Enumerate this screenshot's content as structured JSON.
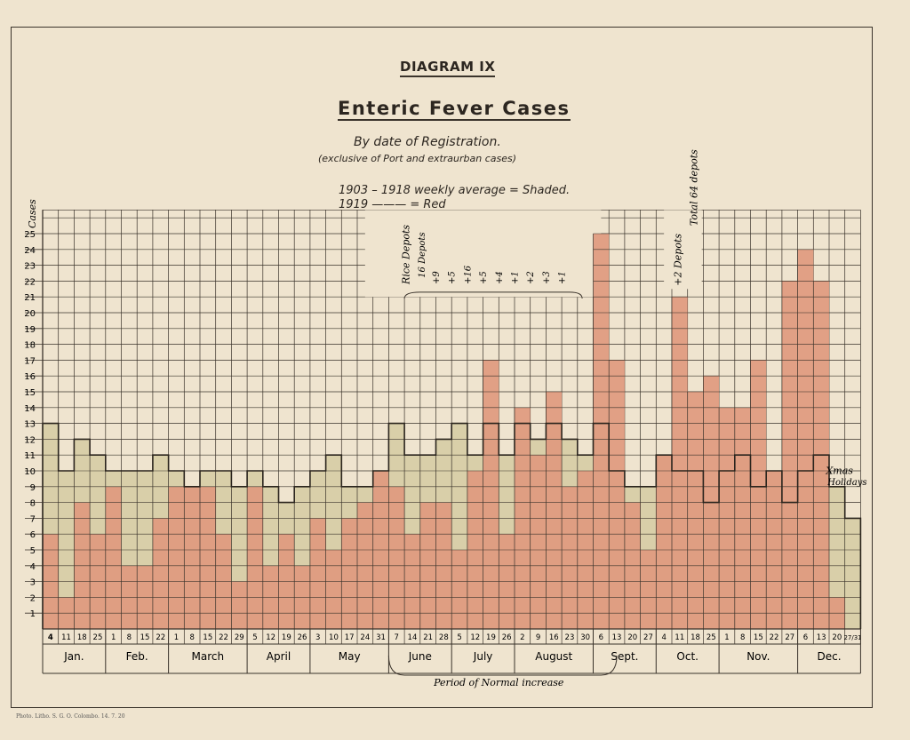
{
  "header": {
    "diagram": "DIAGRAM IX",
    "title": "Enteric Fever Cases",
    "caption_line1": "By date of Registration.",
    "caption_line2": "(exclusive of Port and extraurban cases)",
    "legend_line1": "1903 – 1918  weekly average = Shaded.",
    "legend_line2": "1919        ———      = Red"
  },
  "footer": "Photo. Litho. S. G. O. Colombo. 14. 7. 20",
  "colors": {
    "paper": "#efe4cf",
    "shaded": "#d9cfa9",
    "red": "#e09a7f",
    "grid": "#3a332b"
  },
  "chart_data": {
    "type": "bar",
    "ylabel": "Cases",
    "ylim": [
      0,
      25
    ],
    "y_ticks": [
      1,
      2,
      3,
      4,
      5,
      6,
      7,
      8,
      9,
      10,
      11,
      12,
      13,
      14,
      15,
      16,
      17,
      18,
      19,
      20,
      21,
      22,
      23,
      24,
      25
    ],
    "categories": [
      "4",
      "11",
      "18",
      "25",
      "1",
      "8",
      "15",
      "22",
      "1",
      "8",
      "15",
      "22",
      "29",
      "5",
      "12",
      "19",
      "26",
      "3",
      "10",
      "17",
      "24",
      "31",
      "7",
      "14",
      "21",
      "28",
      "5",
      "12",
      "19",
      "26",
      "2",
      "9",
      "16",
      "23",
      "30",
      "6",
      "13",
      "20",
      "27",
      "4",
      "11",
      "18",
      "25",
      "1",
      "8",
      "15",
      "22",
      "27",
      "6",
      "13",
      "20",
      "27/31"
    ],
    "months": [
      {
        "label": "Jan.",
        "start": 0,
        "end": 4
      },
      {
        "label": "Feb.",
        "start": 4,
        "end": 8
      },
      {
        "label": "March",
        "start": 8,
        "end": 13
      },
      {
        "label": "April",
        "start": 13,
        "end": 17
      },
      {
        "label": "May",
        "start": 17,
        "end": 22
      },
      {
        "label": "June",
        "start": 22,
        "end": 26
      },
      {
        "label": "July",
        "start": 26,
        "end": 30
      },
      {
        "label": "August",
        "start": 30,
        "end": 35
      },
      {
        "label": "Sept.",
        "start": 35,
        "end": 39
      },
      {
        "label": "Oct.",
        "start": 39,
        "end": 43
      },
      {
        "label": "Nov.",
        "start": 43,
        "end": 48
      },
      {
        "label": "Dec.",
        "start": 48,
        "end": 52
      }
    ],
    "series": [
      {
        "name": "1903 – 1918 weekly average",
        "style": "shaded",
        "values": [
          13,
          10,
          12,
          11,
          10,
          10,
          10,
          11,
          10,
          9,
          10,
          10,
          9,
          10,
          9,
          8,
          9,
          10,
          11,
          9,
          9,
          10,
          13,
          11,
          11,
          12,
          13,
          11,
          13,
          11,
          13,
          12,
          13,
          12,
          11,
          13,
          10,
          9,
          9,
          11,
          10,
          10,
          8,
          10,
          11,
          9,
          10,
          8,
          10,
          11,
          9,
          7
        ]
      },
      {
        "name": "1919",
        "style": "red",
        "values": [
          6,
          2,
          8,
          6,
          9,
          4,
          4,
          7,
          9,
          9,
          9,
          6,
          3,
          9,
          4,
          6,
          4,
          7,
          5,
          7,
          8,
          10,
          9,
          6,
          8,
          8,
          5,
          10,
          17,
          6,
          14,
          11,
          15,
          9,
          10,
          25,
          17,
          8,
          5,
          11,
          21,
          15,
          16,
          14,
          14,
          17,
          10,
          22,
          24,
          22,
          2,
          0
        ]
      }
    ],
    "annotations": {
      "rice_depots": "Rice Depots",
      "depots_16": "16 Depots",
      "depot_increments": [
        "+9",
        "+5",
        "+16",
        "+5",
        "+4",
        "+1",
        "+2",
        "+3",
        "+1"
      ],
      "oct_depots": "+2 Depots",
      "total_depots": "Total 64 depots",
      "xmas": "Xmas",
      "holidays": "Holidays",
      "period": "Period of Normal increase"
    }
  }
}
